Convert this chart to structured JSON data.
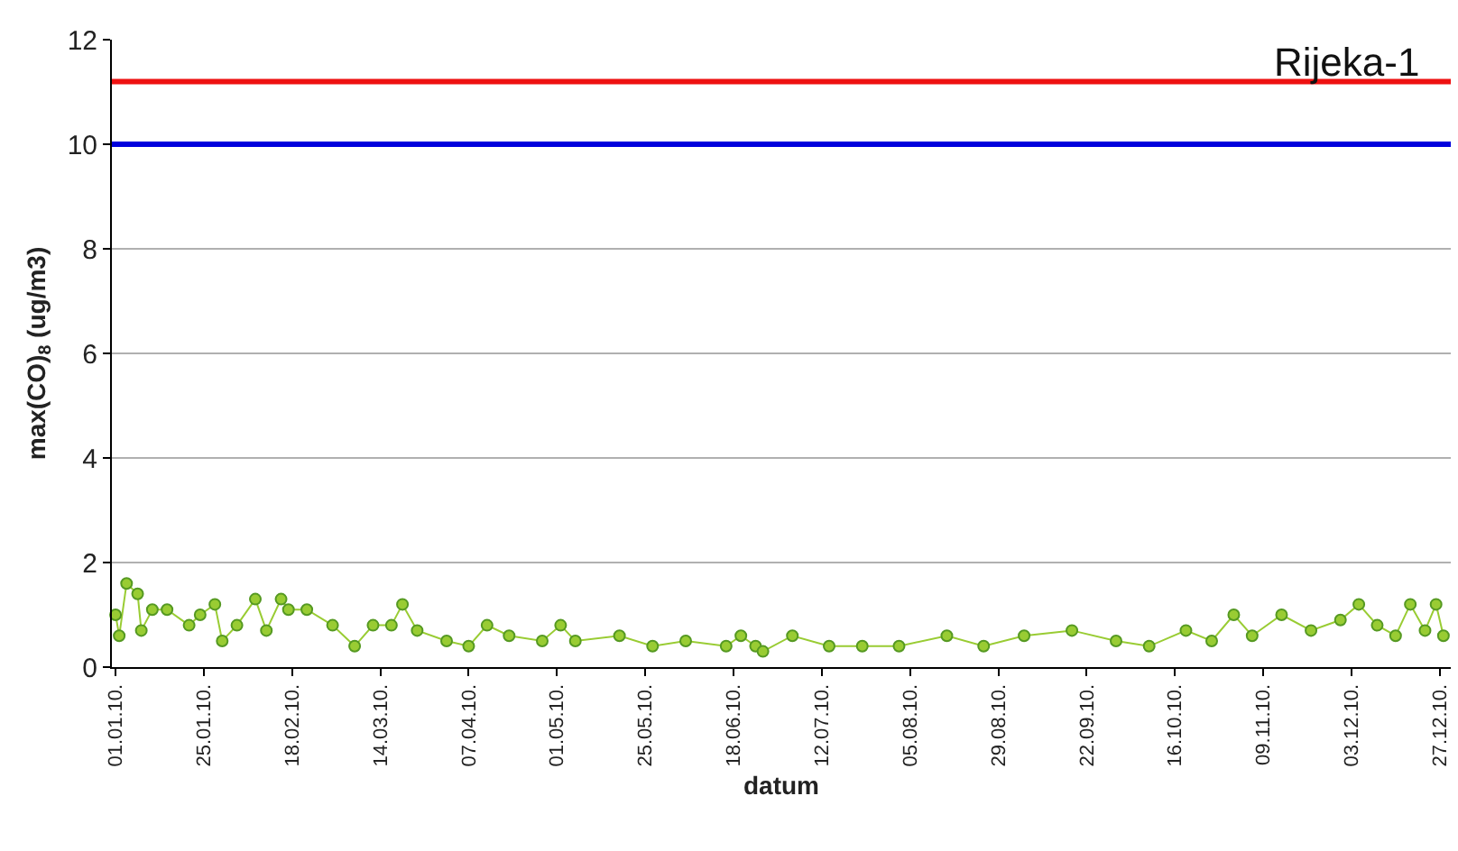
{
  "chart_data": {
    "type": "line",
    "ylabel": "max(CO)$_{8}$ (ug/m3)",
    "xlabel": "datum",
    "annotations": [
      "Rijeka-1"
    ],
    "x": [
      "2010-01-01",
      "2010-01-02",
      "2010-01-04",
      "2010-01-07",
      "2010-01-08",
      "2010-01-11",
      "2010-01-15",
      "2010-01-21",
      "2010-01-24",
      "2010-01-28",
      "2010-01-30",
      "2010-02-03",
      "2010-02-08",
      "2010-02-11",
      "2010-02-15",
      "2010-02-17",
      "2010-02-22",
      "2010-03-01",
      "2010-03-07",
      "2010-03-12",
      "2010-03-17",
      "2010-03-20",
      "2010-03-24",
      "2010-04-01",
      "2010-04-07",
      "2010-04-12",
      "2010-04-18",
      "2010-04-27",
      "2010-05-02",
      "2010-05-06",
      "2010-05-18",
      "2010-05-27",
      "2010-06-05",
      "2010-06-16",
      "2010-06-20",
      "2010-06-24",
      "2010-06-26",
      "2010-07-04",
      "2010-07-14",
      "2010-07-23",
      "2010-08-02",
      "2010-08-15",
      "2010-08-25",
      "2010-09-05",
      "2010-09-18",
      "2010-09-30",
      "2010-10-09",
      "2010-10-19",
      "2010-10-26",
      "2010-11-01",
      "2010-11-06",
      "2010-11-14",
      "2010-11-22",
      "2010-11-30",
      "2010-12-05",
      "2010-12-10",
      "2010-12-15",
      "2010-12-19",
      "2010-12-23",
      "2010-12-26",
      "2010-12-28"
    ],
    "series": [
      {
        "color": "#99cc33",
        "values": [
          1.0,
          0.6,
          1.6,
          1.4,
          0.7,
          1.1,
          1.1,
          0.8,
          1.0,
          1.2,
          0.5,
          0.8,
          1.3,
          0.7,
          1.3,
          1.1,
          1.1,
          0.8,
          0.4,
          0.8,
          0.8,
          1.2,
          0.7,
          0.5,
          0.4,
          0.8,
          0.6,
          0.5,
          0.8,
          0.5,
          0.6,
          0.4,
          0.5,
          0.4,
          0.6,
          0.4,
          0.3,
          0.6,
          0.4,
          0.4,
          0.4,
          0.6,
          0.4,
          0.6,
          0.7,
          0.5,
          0.4,
          0.7,
          0.5,
          1.0,
          0.6,
          1.0,
          0.7,
          0.9,
          1.2,
          0.8,
          0.6,
          1.2,
          0.7,
          1.2,
          0.6
        ]
      }
    ],
    "ref_lines": [
      {
        "axis": "y",
        "value": 11.2,
        "color": "#ee1111"
      },
      {
        "axis": "y",
        "value": 10,
        "color": "#0000dd"
      }
    ],
    "xlim": [
      "2009-12-31",
      "2010-12-30"
    ],
    "xticks": [
      {
        "value": "2010-01-01",
        "label": "01.01.10."
      },
      {
        "value": "2010-01-25",
        "label": "25.01.10."
      },
      {
        "value": "2010-02-18",
        "label": "18.02.10."
      },
      {
        "value": "2010-03-14",
        "label": "14.03.10."
      },
      {
        "value": "2010-04-07",
        "label": "07.04.10."
      },
      {
        "value": "2010-05-01",
        "label": "01.05.10."
      },
      {
        "value": "2010-05-25",
        "label": "25.05.10."
      },
      {
        "value": "2010-06-18",
        "label": "18.06.10."
      },
      {
        "value": "2010-07-12",
        "label": "12.07.10."
      },
      {
        "value": "2010-08-05",
        "label": "05.08.10."
      },
      {
        "value": "2010-08-29",
        "label": "29.08.10."
      },
      {
        "value": "2010-09-22",
        "label": "22.09.10."
      },
      {
        "value": "2010-10-16",
        "label": "16.10.10."
      },
      {
        "value": "2010-11-09",
        "label": "09.11.10."
      },
      {
        "value": "2010-12-03",
        "label": "03.12.10."
      },
      {
        "value": "2010-12-27",
        "label": "27.12.10."
      }
    ],
    "ylim": [
      0,
      12
    ],
    "yticks": [
      0,
      2,
      4,
      6,
      8,
      10,
      12
    ],
    "grid": "y",
    "marker": "circle",
    "line_style": "solid"
  }
}
